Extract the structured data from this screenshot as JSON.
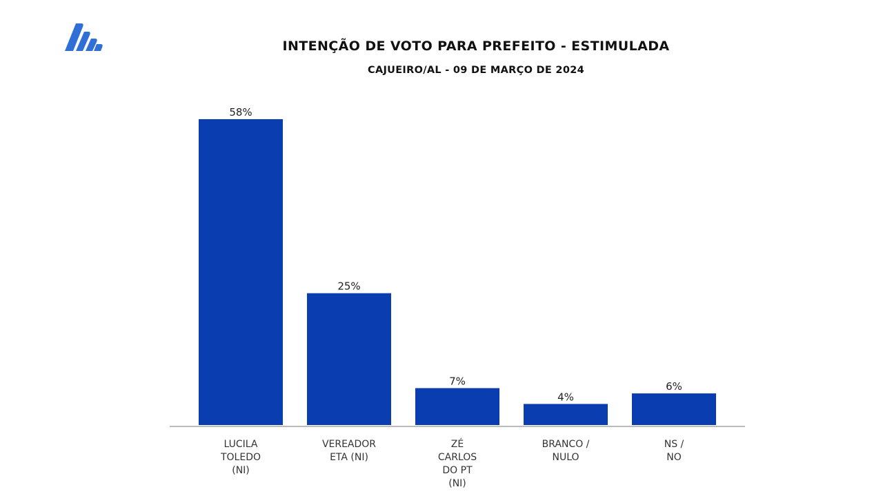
{
  "chart_data": {
    "type": "bar",
    "title": "INTENÇÃO DE VOTO PARA PREFEITO - ESTIMULADA",
    "subtitle": "CAJUEIRO/AL - 09 DE MARÇO DE 2024",
    "categories": [
      [
        "LUCILA",
        "TOLEDO",
        "(NI)"
      ],
      [
        "VEREADOR",
        "ETA (NI)"
      ],
      [
        "ZÉ",
        "CARLOS",
        "DO PT",
        "(NI)"
      ],
      [
        "BRANCO /",
        "NULO"
      ],
      [
        "NS /",
        "NO"
      ]
    ],
    "values": [
      58,
      25,
      7,
      4,
      6
    ],
    "value_labels": [
      "58%",
      "25%",
      "7%",
      "4%",
      "6%"
    ],
    "ylim": [
      0,
      60
    ],
    "grid": false,
    "legend": "none"
  },
  "colors": {
    "bar": "#0a3eb0",
    "logo": "#2f6fd6",
    "axis": "#bbbbbb"
  },
  "logo": {
    "icon": "stacked-stripes-logo-icon"
  }
}
